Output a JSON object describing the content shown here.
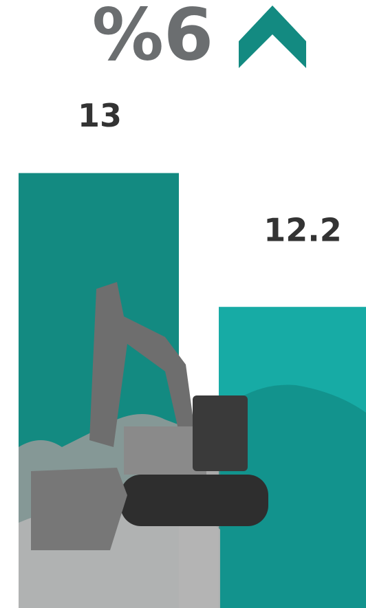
{
  "chart_data": {
    "type": "bar",
    "title": "%6",
    "categories": [
      null,
      null
    ],
    "values": [
      13,
      12.2
    ],
    "colors": [
      "#138a81",
      "#17aba5"
    ],
    "ylim": [
      10.4,
      13.5
    ]
  }
}
